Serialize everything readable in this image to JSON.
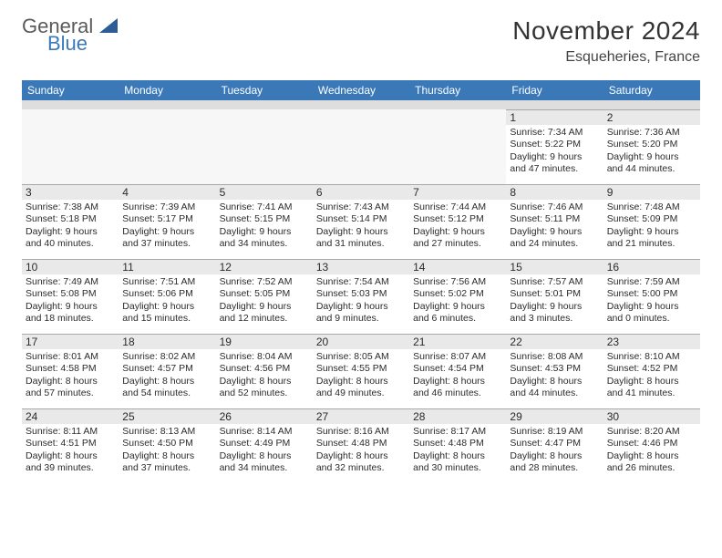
{
  "brand": {
    "prefix": "General",
    "suffix": "Blue",
    "logo_color": "#2d5c96"
  },
  "title": {
    "month": "November 2024",
    "location": "Esqueheries, France"
  },
  "colors": {
    "header_bg": "#3b78b8",
    "header_text": "#ffffff",
    "daynum_bg": "#e9e9e9",
    "cell_border": "#a8a8a8",
    "body_text": "#2b2b2b",
    "spacer_bg": "#dedede"
  },
  "day_headers": [
    "Sunday",
    "Monday",
    "Tuesday",
    "Wednesday",
    "Thursday",
    "Friday",
    "Saturday"
  ],
  "weeks": [
    [
      {
        "empty": true
      },
      {
        "empty": true
      },
      {
        "empty": true
      },
      {
        "empty": true
      },
      {
        "empty": true
      },
      {
        "day": "1",
        "sunrise": "Sunrise: 7:34 AM",
        "sunset": "Sunset: 5:22 PM",
        "d1": "Daylight: 9 hours",
        "d2": "and 47 minutes."
      },
      {
        "day": "2",
        "sunrise": "Sunrise: 7:36 AM",
        "sunset": "Sunset: 5:20 PM",
        "d1": "Daylight: 9 hours",
        "d2": "and 44 minutes."
      }
    ],
    [
      {
        "day": "3",
        "sunrise": "Sunrise: 7:38 AM",
        "sunset": "Sunset: 5:18 PM",
        "d1": "Daylight: 9 hours",
        "d2": "and 40 minutes."
      },
      {
        "day": "4",
        "sunrise": "Sunrise: 7:39 AM",
        "sunset": "Sunset: 5:17 PM",
        "d1": "Daylight: 9 hours",
        "d2": "and 37 minutes."
      },
      {
        "day": "5",
        "sunrise": "Sunrise: 7:41 AM",
        "sunset": "Sunset: 5:15 PM",
        "d1": "Daylight: 9 hours",
        "d2": "and 34 minutes."
      },
      {
        "day": "6",
        "sunrise": "Sunrise: 7:43 AM",
        "sunset": "Sunset: 5:14 PM",
        "d1": "Daylight: 9 hours",
        "d2": "and 31 minutes."
      },
      {
        "day": "7",
        "sunrise": "Sunrise: 7:44 AM",
        "sunset": "Sunset: 5:12 PM",
        "d1": "Daylight: 9 hours",
        "d2": "and 27 minutes."
      },
      {
        "day": "8",
        "sunrise": "Sunrise: 7:46 AM",
        "sunset": "Sunset: 5:11 PM",
        "d1": "Daylight: 9 hours",
        "d2": "and 24 minutes."
      },
      {
        "day": "9",
        "sunrise": "Sunrise: 7:48 AM",
        "sunset": "Sunset: 5:09 PM",
        "d1": "Daylight: 9 hours",
        "d2": "and 21 minutes."
      }
    ],
    [
      {
        "day": "10",
        "sunrise": "Sunrise: 7:49 AM",
        "sunset": "Sunset: 5:08 PM",
        "d1": "Daylight: 9 hours",
        "d2": "and 18 minutes."
      },
      {
        "day": "11",
        "sunrise": "Sunrise: 7:51 AM",
        "sunset": "Sunset: 5:06 PM",
        "d1": "Daylight: 9 hours",
        "d2": "and 15 minutes."
      },
      {
        "day": "12",
        "sunrise": "Sunrise: 7:52 AM",
        "sunset": "Sunset: 5:05 PM",
        "d1": "Daylight: 9 hours",
        "d2": "and 12 minutes."
      },
      {
        "day": "13",
        "sunrise": "Sunrise: 7:54 AM",
        "sunset": "Sunset: 5:03 PM",
        "d1": "Daylight: 9 hours",
        "d2": "and 9 minutes."
      },
      {
        "day": "14",
        "sunrise": "Sunrise: 7:56 AM",
        "sunset": "Sunset: 5:02 PM",
        "d1": "Daylight: 9 hours",
        "d2": "and 6 minutes."
      },
      {
        "day": "15",
        "sunrise": "Sunrise: 7:57 AM",
        "sunset": "Sunset: 5:01 PM",
        "d1": "Daylight: 9 hours",
        "d2": "and 3 minutes."
      },
      {
        "day": "16",
        "sunrise": "Sunrise: 7:59 AM",
        "sunset": "Sunset: 5:00 PM",
        "d1": "Daylight: 9 hours",
        "d2": "and 0 minutes."
      }
    ],
    [
      {
        "day": "17",
        "sunrise": "Sunrise: 8:01 AM",
        "sunset": "Sunset: 4:58 PM",
        "d1": "Daylight: 8 hours",
        "d2": "and 57 minutes."
      },
      {
        "day": "18",
        "sunrise": "Sunrise: 8:02 AM",
        "sunset": "Sunset: 4:57 PM",
        "d1": "Daylight: 8 hours",
        "d2": "and 54 minutes."
      },
      {
        "day": "19",
        "sunrise": "Sunrise: 8:04 AM",
        "sunset": "Sunset: 4:56 PM",
        "d1": "Daylight: 8 hours",
        "d2": "and 52 minutes."
      },
      {
        "day": "20",
        "sunrise": "Sunrise: 8:05 AM",
        "sunset": "Sunset: 4:55 PM",
        "d1": "Daylight: 8 hours",
        "d2": "and 49 minutes."
      },
      {
        "day": "21",
        "sunrise": "Sunrise: 8:07 AM",
        "sunset": "Sunset: 4:54 PM",
        "d1": "Daylight: 8 hours",
        "d2": "and 46 minutes."
      },
      {
        "day": "22",
        "sunrise": "Sunrise: 8:08 AM",
        "sunset": "Sunset: 4:53 PM",
        "d1": "Daylight: 8 hours",
        "d2": "and 44 minutes."
      },
      {
        "day": "23",
        "sunrise": "Sunrise: 8:10 AM",
        "sunset": "Sunset: 4:52 PM",
        "d1": "Daylight: 8 hours",
        "d2": "and 41 minutes."
      }
    ],
    [
      {
        "day": "24",
        "sunrise": "Sunrise: 8:11 AM",
        "sunset": "Sunset: 4:51 PM",
        "d1": "Daylight: 8 hours",
        "d2": "and 39 minutes."
      },
      {
        "day": "25",
        "sunrise": "Sunrise: 8:13 AM",
        "sunset": "Sunset: 4:50 PM",
        "d1": "Daylight: 8 hours",
        "d2": "and 37 minutes."
      },
      {
        "day": "26",
        "sunrise": "Sunrise: 8:14 AM",
        "sunset": "Sunset: 4:49 PM",
        "d1": "Daylight: 8 hours",
        "d2": "and 34 minutes."
      },
      {
        "day": "27",
        "sunrise": "Sunrise: 8:16 AM",
        "sunset": "Sunset: 4:48 PM",
        "d1": "Daylight: 8 hours",
        "d2": "and 32 minutes."
      },
      {
        "day": "28",
        "sunrise": "Sunrise: 8:17 AM",
        "sunset": "Sunset: 4:48 PM",
        "d1": "Daylight: 8 hours",
        "d2": "and 30 minutes."
      },
      {
        "day": "29",
        "sunrise": "Sunrise: 8:19 AM",
        "sunset": "Sunset: 4:47 PM",
        "d1": "Daylight: 8 hours",
        "d2": "and 28 minutes."
      },
      {
        "day": "30",
        "sunrise": "Sunrise: 8:20 AM",
        "sunset": "Sunset: 4:46 PM",
        "d1": "Daylight: 8 hours",
        "d2": "and 26 minutes."
      }
    ]
  ]
}
